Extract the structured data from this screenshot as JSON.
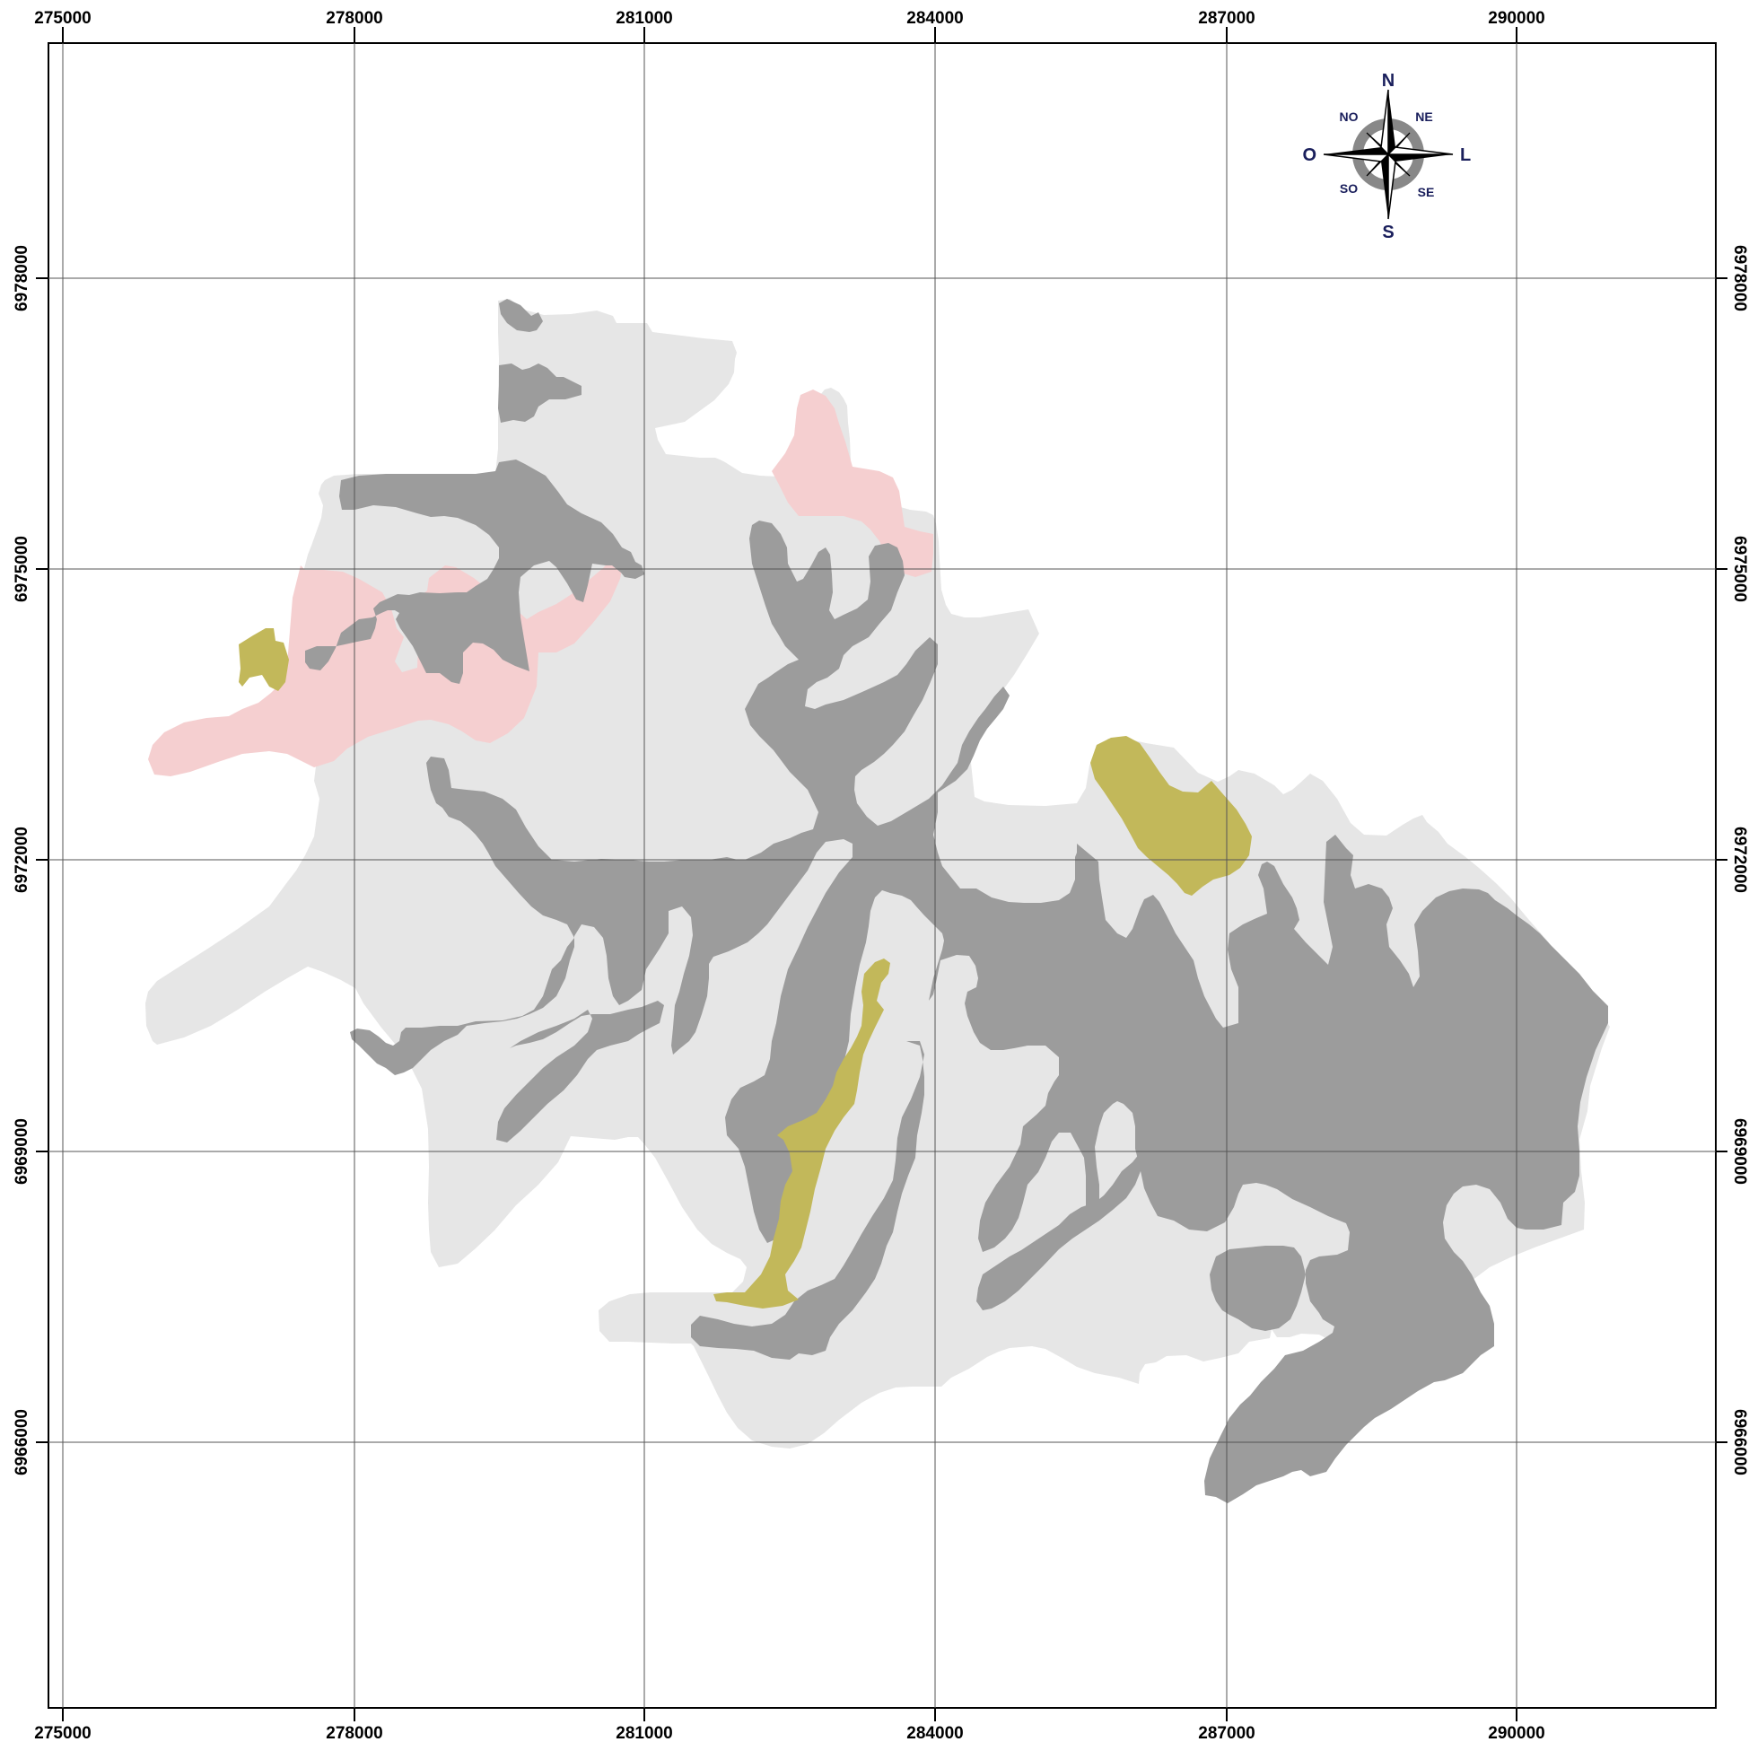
{
  "map": {
    "x_ticks": [
      "275000",
      "278000",
      "281000",
      "284000",
      "287000",
      "290000"
    ],
    "y_ticks": [
      "6978000",
      "6975000",
      "6972000",
      "6969000",
      "6966000"
    ],
    "colors": {
      "frame": "#000000",
      "grid": "#555555",
      "background": "#ffffff",
      "basin": "#e6e6e6",
      "drainage": "#9c9c9c",
      "pink_zone": "#f5cfd0",
      "olive_zone": "#c2b85a"
    }
  },
  "compass": {
    "icon": "compass-rose-icon",
    "n": "N",
    "s": "S",
    "l": "L",
    "o": "O",
    "ne": "NE",
    "no": "NO",
    "se": "SE",
    "so": "SO"
  }
}
